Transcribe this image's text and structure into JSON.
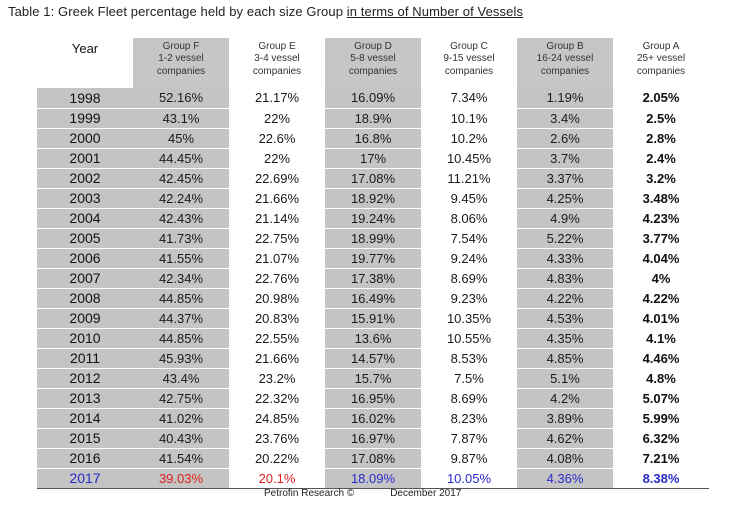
{
  "title": {
    "part1": "Table 1: Greek Fleet percentage held by each size Group ",
    "part2": "in terms of Number of Vessels"
  },
  "headers": {
    "year": "Year",
    "groups": [
      {
        "name": "Group F",
        "line2": "1-2 vessel",
        "line3": "companies"
      },
      {
        "name": "Group E",
        "line2": "3-4 vessel",
        "line3": "companies"
      },
      {
        "name": "Group D",
        "line2": "5-8 vessel",
        "line3": "companies"
      },
      {
        "name": "Group C",
        "line2": "9-15 vessel",
        "line3": "companies"
      },
      {
        "name": "Group B",
        "line2": "16-24 vessel",
        "line3": "companies"
      },
      {
        "name": "Group A",
        "line2": "25+ vessel",
        "line3": "companies"
      }
    ]
  },
  "rows": [
    {
      "year": "1998",
      "f": "52.16%",
      "e": "21.17%",
      "d": "16.09%",
      "c": "7.34%",
      "b": "1.19%",
      "a": "2.05%"
    },
    {
      "year": "1999",
      "f": "43.1%",
      "e": "22%",
      "d": "18.9%",
      "c": "10.1%",
      "b": "3.4%",
      "a": "2.5%"
    },
    {
      "year": "2000",
      "f": "45%",
      "e": "22.6%",
      "d": "16.8%",
      "c": "10.2%",
      "b": "2.6%",
      "a": "2.8%"
    },
    {
      "year": "2001",
      "f": "44.45%",
      "e": "22%",
      "d": "17%",
      "c": "10.45%",
      "b": "3.7%",
      "a": "2.4%"
    },
    {
      "year": "2002",
      "f": "42.45%",
      "e": "22.69%",
      "d": "17.08%",
      "c": "11.21%",
      "b": "3.37%",
      "a": "3.2%"
    },
    {
      "year": "2003",
      "f": "42.24%",
      "e": "21.66%",
      "d": "18.92%",
      "c": "9.45%",
      "b": "4.25%",
      "a": "3.48%"
    },
    {
      "year": "2004",
      "f": "42.43%",
      "e": "21.14%",
      "d": "19.24%",
      "c": "8.06%",
      "b": "4.9%",
      "a": "4.23%"
    },
    {
      "year": "2005",
      "f": "41.73%",
      "e": "22.75%",
      "d": "18.99%",
      "c": "7.54%",
      "b": "5.22%",
      "a": "3.77%"
    },
    {
      "year": "2006",
      "f": "41.55%",
      "e": "21.07%",
      "d": "19.77%",
      "c": "9.24%",
      "b": "4.33%",
      "a": "4.04%"
    },
    {
      "year": "2007",
      "f": "42.34%",
      "e": "22.76%",
      "d": "17.38%",
      "c": "8.69%",
      "b": "4.83%",
      "a": "4%"
    },
    {
      "year": "2008",
      "f": "44.85%",
      "e": "20.98%",
      "d": "16.49%",
      "c": "9.23%",
      "b": "4.22%",
      "a": "4.22%"
    },
    {
      "year": "2009",
      "f": "44.37%",
      "e": "20.83%",
      "d": "15.91%",
      "c": "10.35%",
      "b": "4.53%",
      "a": "4.01%"
    },
    {
      "year": "2010",
      "f": "44.85%",
      "e": "22.55%",
      "d": "13.6%",
      "c": "10.55%",
      "b": "4.35%",
      "a": "4.1%"
    },
    {
      "year": "2011",
      "f": "45.93%",
      "e": "21.66%",
      "d": "14.57%",
      "c": "8.53%",
      "b": "4.85%",
      "a": "4.46%"
    },
    {
      "year": "2012",
      "f": "43.4%",
      "e": "23.2%",
      "d": "15.7%",
      "c": "7.5%",
      "b": "5.1%",
      "a": "4.8%"
    },
    {
      "year": "2013",
      "f": "42.75%",
      "e": "22.32%",
      "d": "16.95%",
      "c": "8.69%",
      "b": "4.2%",
      "a": "5.07%"
    },
    {
      "year": "2014",
      "f": "41.02%",
      "e": "24.85%",
      "d": "16.02%",
      "c": "8.23%",
      "b": "3.89%",
      "a": "5.99%"
    },
    {
      "year": "2015",
      "f": "40.43%",
      "e": "23.76%",
      "d": "16.97%",
      "c": "7.87%",
      "b": "4.62%",
      "a": "6.32%"
    },
    {
      "year": "2016",
      "f": "41.54%",
      "e": "20.22%",
      "d": "17.08%",
      "c": "9.87%",
      "b": "4.08%",
      "a": "7.21%"
    },
    {
      "year": "2017",
      "f": "39.03%",
      "e": "20.1%",
      "d": "18.09%",
      "c": "10.05%",
      "b": "4.36%",
      "a": "8.38%"
    }
  ],
  "footer": {
    "source": "Petrofin Research ©",
    "date": "December 2017"
  },
  "colors": {
    "shade": "#c4c4c4",
    "highlight_blue": "#2b2bcc",
    "highlight_red": "#e02020"
  }
}
